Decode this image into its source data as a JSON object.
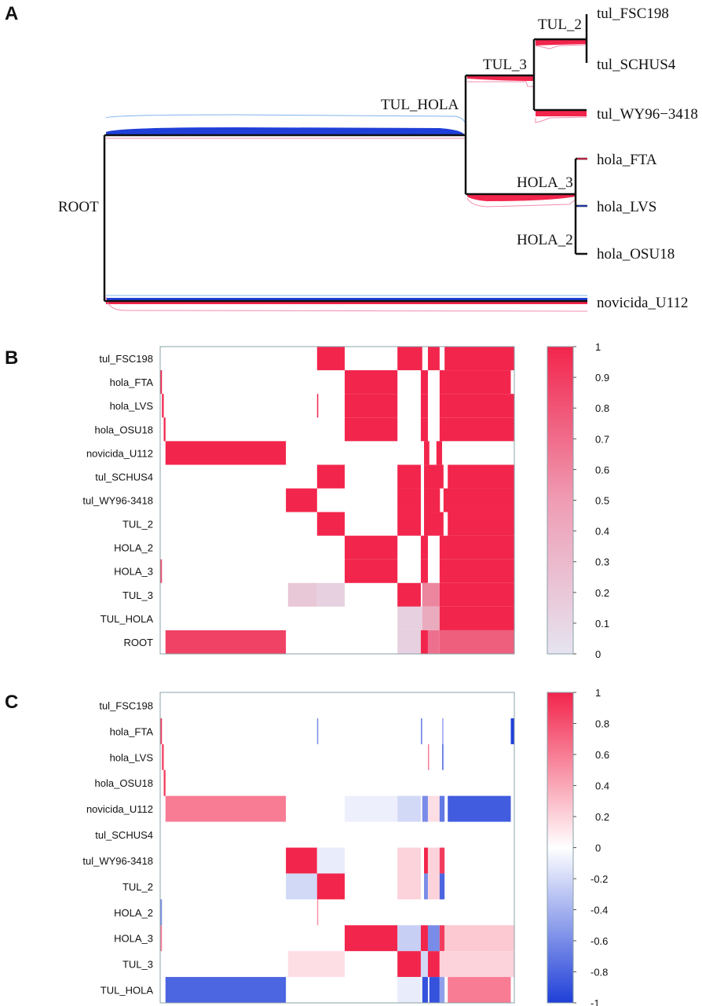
{
  "panels": {
    "a": "A",
    "b": "B",
    "c": "C"
  },
  "tree": {
    "internal_nodes": {
      "root": "ROOT",
      "tul_hola": "TUL_HOLA",
      "tul_3": "TUL_3",
      "tul_2": "TUL_2",
      "hola_3": "HOLA_3",
      "hola_2": "HOLA_2"
    },
    "leaves": {
      "tul_fsc198": "tul_FSC198",
      "tul_schus4": "tul_SCHUS4",
      "tul_wy": "tul_WY96−3418",
      "hola_fta": "hola_FTA",
      "hola_lvs": "hola_LVS",
      "hola_osu18": "hola_OSU18",
      "novicida": "novicida_U112"
    },
    "colors": {
      "positive": "#f2254c",
      "negative": "#1f3fd8",
      "light_positive": "#f08cb0",
      "light_negative": "#7fb4ee",
      "branch": "#111111"
    }
  },
  "chart_data": [
    {
      "type": "heatmap",
      "title": "B",
      "x_range": [
        0,
        1000
      ],
      "color_range": [
        0,
        1
      ],
      "colorbar_ticks": [
        "1",
        "0.9",
        "0.8",
        "0.7",
        "0.6",
        "0.5",
        "0.4",
        "0.3",
        "0.2",
        "0.1",
        "0"
      ],
      "colors": {
        "low": "#e6e4f0",
        "high": "#f2254c"
      },
      "rows": [
        {
          "label": "tul_FSC198",
          "cells": [
            [
              443,
              521,
              1
            ],
            [
              670,
              740,
              1
            ],
            [
              756,
              789,
              1
            ],
            [
              803,
              1000,
              1
            ]
          ]
        },
        {
          "label": "hola_FTA",
          "cells": [
            [
              0,
              5,
              1
            ],
            [
              521,
              670,
              1
            ],
            [
              736,
              756,
              1
            ],
            [
              789,
              990,
              1
            ]
          ]
        },
        {
          "label": "hola_LVS",
          "cells": [
            [
              5,
              10,
              1
            ],
            [
              443,
              446,
              1
            ],
            [
              521,
              670,
              1
            ],
            [
              736,
              756,
              1
            ],
            [
              789,
              1000,
              1
            ]
          ]
        },
        {
          "label": "hola_OSU18",
          "cells": [
            [
              10,
              15,
              1
            ],
            [
              521,
              670,
              1
            ],
            [
              736,
              756,
              1
            ],
            [
              789,
              1000,
              1
            ]
          ]
        },
        {
          "label": "novicida_U112",
          "cells": [
            [
              15,
              355,
              1
            ],
            [
              745,
              760,
              1
            ],
            [
              780,
              796,
              1
            ]
          ]
        },
        {
          "label": "tul_SCHUS4",
          "cells": [
            [
              443,
              521,
              1
            ],
            [
              670,
              736,
              1
            ],
            [
              745,
              800,
              1
            ],
            [
              812,
              1000,
              1
            ]
          ]
        },
        {
          "label": "tul_WY96-3418",
          "cells": [
            [
              355,
              443,
              1
            ],
            [
              670,
              736,
              1
            ],
            [
              745,
              790,
              1
            ],
            [
              800,
              1000,
              1
            ]
          ]
        },
        {
          "label": "TUL_2",
          "cells": [
            [
              443,
              521,
              1
            ],
            [
              670,
              736,
              1
            ],
            [
              745,
              800,
              1
            ],
            [
              812,
              1000,
              1
            ]
          ]
        },
        {
          "label": "HOLA_2",
          "cells": [
            [
              521,
              670,
              1
            ],
            [
              736,
              756,
              1
            ],
            [
              789,
              1000,
              1
            ]
          ]
        },
        {
          "label": "HOLA_3",
          "cells": [
            [
              0,
              5,
              0.8
            ],
            [
              521,
              670,
              1
            ],
            [
              736,
              756,
              1
            ],
            [
              789,
              1000,
              1
            ]
          ]
        },
        {
          "label": "TUL_3",
          "cells": [
            [
              361,
              443,
              0.15
            ],
            [
              443,
              521,
              0.1
            ],
            [
              670,
              736,
              1
            ],
            [
              740,
              789,
              0.5
            ],
            [
              789,
              1000,
              1
            ]
          ]
        },
        {
          "label": "TUL_HOLA",
          "cells": [
            [
              670,
              740,
              0.1
            ],
            [
              740,
              789,
              0.3
            ],
            [
              789,
              1000,
              1
            ]
          ]
        },
        {
          "label": "ROOT",
          "cells": [
            [
              15,
              355,
              0.85
            ],
            [
              670,
              736,
              0.1
            ],
            [
              736,
              756,
              1
            ],
            [
              756,
              789,
              0.6
            ],
            [
              789,
              1000,
              0.7
            ]
          ]
        }
      ]
    },
    {
      "type": "heatmap",
      "title": "C",
      "x_range": [
        0,
        1000
      ],
      "color_range": [
        -1,
        1
      ],
      "colorbar_ticks": [
        "1",
        "0.8",
        "0.6",
        "0.4",
        "0.2",
        "0",
        "-0.2",
        "-0.4",
        "-0.6",
        "-0.8",
        "-1"
      ],
      "colors": {
        "low": "#1f3fd8",
        "mid": "#ffffff",
        "high": "#f2254c"
      },
      "rows": [
        {
          "label": "tul_FSC198",
          "cells": []
        },
        {
          "label": "hola_FTA",
          "cells": [
            [
              0,
              5,
              0.9
            ],
            [
              443,
              446,
              -0.6
            ],
            [
              736,
              740,
              -0.6
            ],
            [
              796,
              800,
              -0.4
            ],
            [
              990,
              1000,
              -1
            ]
          ]
        },
        {
          "label": "hola_LVS",
          "cells": [
            [
              5,
              10,
              0.9
            ],
            [
              756,
              758,
              0.6
            ],
            [
              796,
              800,
              -0.7
            ]
          ]
        },
        {
          "label": "hola_OSU18",
          "cells": [
            [
              10,
              15,
              0.9
            ]
          ]
        },
        {
          "label": "novicida_U112",
          "cells": [
            [
              15,
              355,
              0.6
            ],
            [
              521,
              670,
              -0.08
            ],
            [
              670,
              736,
              -0.2
            ],
            [
              740,
              756,
              -0.6
            ],
            [
              756,
              789,
              0.15
            ],
            [
              789,
              803,
              -0.7
            ],
            [
              812,
              990,
              -0.85
            ]
          ]
        },
        {
          "label": "tul_SCHUS4",
          "cells": []
        },
        {
          "label": "tul_WY96-3418",
          "cells": [
            [
              355,
              443,
              1
            ],
            [
              443,
              521,
              -0.1
            ],
            [
              670,
              736,
              0.2
            ],
            [
              745,
              756,
              1
            ],
            [
              756,
              789,
              0.2
            ],
            [
              789,
              803,
              0.9
            ]
          ]
        },
        {
          "label": "TUL_2",
          "cells": [
            [
              355,
              443,
              -0.2
            ],
            [
              443,
              521,
              1
            ],
            [
              670,
              736,
              0.2
            ],
            [
              745,
              756,
              -0.6
            ],
            [
              756,
              789,
              0.2
            ],
            [
              789,
              803,
              -0.8
            ]
          ]
        },
        {
          "label": "HOLA_2",
          "cells": [
            [
              0,
              5,
              -0.6
            ],
            [
              443,
              446,
              0.5
            ]
          ]
        },
        {
          "label": "HOLA_3",
          "cells": [
            [
              0,
              5,
              0.6
            ],
            [
              521,
              670,
              1
            ],
            [
              670,
              736,
              -0.25
            ],
            [
              736,
              756,
              1
            ],
            [
              756,
              789,
              -0.6
            ],
            [
              789,
              803,
              0.9
            ],
            [
              803,
              1000,
              0.25
            ]
          ]
        },
        {
          "label": "TUL_3",
          "cells": [
            [
              361,
              521,
              0.15
            ],
            [
              670,
              736,
              1
            ],
            [
              736,
              756,
              -0.2
            ],
            [
              756,
              789,
              1
            ],
            [
              789,
              1000,
              0.2
            ]
          ]
        },
        {
          "label": "TUL_HOLA",
          "cells": [
            [
              15,
              355,
              -0.8
            ],
            [
              670,
              736,
              -0.1
            ],
            [
              740,
              756,
              -0.9
            ],
            [
              760,
              789,
              -0.9
            ],
            [
              789,
              803,
              -0.5
            ],
            [
              812,
              990,
              0.6
            ]
          ]
        }
      ]
    }
  ]
}
